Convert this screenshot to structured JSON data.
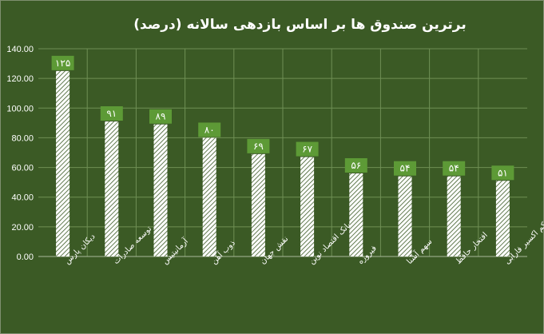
{
  "chart_data": {
    "type": "bar",
    "title": "برترین صندوق ها بر اساس بازدهی سالانه (درصد)",
    "xlabel": "",
    "ylabel": "",
    "ylim": [
      0,
      140
    ],
    "y_ticks": [
      "0.00",
      "20.00",
      "40.00",
      "60.00",
      "80.00",
      "100.00",
      "120.00",
      "140.00"
    ],
    "grid": true,
    "legend": "none",
    "categories": [
      "دیکان پارس",
      "توسعه صادرات",
      "آرمانیتیس",
      "ذوب آهن",
      "نقش جهان",
      "بانک اقتصاد نوین",
      "فیروزه",
      "سهم آشنا",
      "افتخار حافظ",
      "یکم اکسیر فارابی"
    ],
    "values": [
      125,
      91,
      89,
      80,
      69,
      67,
      56,
      54,
      54,
      51
    ],
    "data_labels": [
      "۱۲۵",
      "۹۱",
      "۸۹",
      "۸۰",
      "۶۹",
      "۶۷",
      "۵۶",
      "۵۴",
      "۵۴",
      "۵۱"
    ],
    "colors": {
      "background": "#3b5a25",
      "bar_fill": "#ffffff",
      "bar_hatch": "#3b5a25",
      "grid": "#6f8f55",
      "label_box": "#5d9a36",
      "text": "#ffffff"
    }
  }
}
